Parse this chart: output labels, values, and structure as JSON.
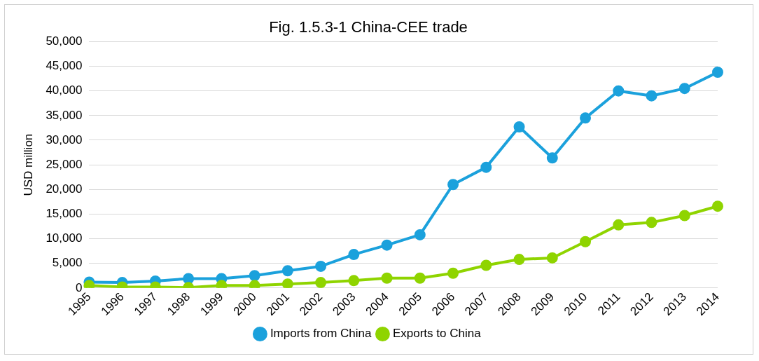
{
  "chart_data": {
    "type": "line",
    "title": "Fig. 1.5.3-1 China-CEE trade",
    "ylabel": "USD million",
    "categories": [
      "1995",
      "1996",
      "1997",
      "1998",
      "1999",
      "2000",
      "2001",
      "2002",
      "2003",
      "2004",
      "2005",
      "2006",
      "2007",
      "2008",
      "2009",
      "2010",
      "2011",
      "2012",
      "2013",
      "2014"
    ],
    "series": [
      {
        "name": "Imports from China",
        "color": "#1ba1dc",
        "values": [
          1200,
          1100,
          1400,
          1900,
          1900,
          2500,
          3500,
          4400,
          6800,
          8700,
          10800,
          21000,
          24500,
          32700,
          26400,
          34500,
          40000,
          39000,
          40500,
          43800
        ]
      },
      {
        "name": "Exports to China",
        "color": "#8fd400",
        "values": [
          500,
          200,
          200,
          100,
          500,
          500,
          800,
          1100,
          1500,
          2000,
          2000,
          3000,
          4600,
          5800,
          6100,
          9400,
          12800,
          13300,
          14700,
          16600
        ]
      }
    ],
    "ylim": [
      0,
      50000
    ],
    "yticks": [
      {
        "value": 0,
        "label": "0"
      },
      {
        "value": 5000,
        "label": "5,000"
      },
      {
        "value": 10000,
        "label": "10,000"
      },
      {
        "value": 15000,
        "label": "15,000"
      },
      {
        "value": 20000,
        "label": "20,000"
      },
      {
        "value": 25000,
        "label": "25,000"
      },
      {
        "value": 30000,
        "label": "30,000"
      },
      {
        "value": 35000,
        "label": "35,000"
      },
      {
        "value": 40000,
        "label": "40,000"
      },
      {
        "value": 45000,
        "label": "45,000"
      },
      {
        "value": 50000,
        "label": "50,000"
      }
    ],
    "grid": "y",
    "legend": "bottom",
    "marker": "circle",
    "line_style": "solid"
  }
}
